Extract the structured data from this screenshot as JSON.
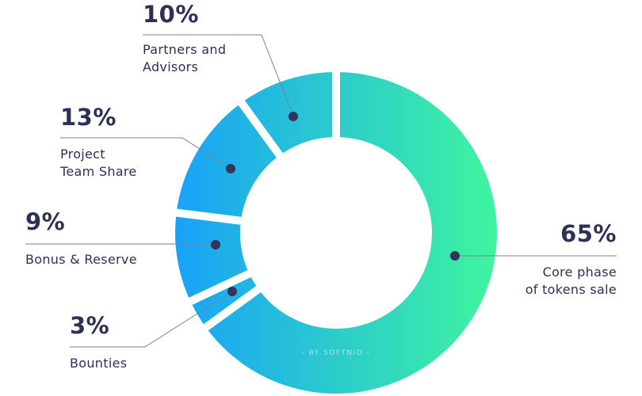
{
  "chart_data": {
    "type": "pie",
    "donut": true,
    "slices": [
      {
        "label": "Core phase\nof tokens sale",
        "value": 65,
        "value_label": "65%"
      },
      {
        "label": "Bounties",
        "value": 3,
        "value_label": "3%"
      },
      {
        "label": "Bonus & Reserve",
        "value": 9,
        "value_label": "9%"
      },
      {
        "label": "Project\nTeam Share",
        "value": 13,
        "value_label": "13%"
      },
      {
        "label": "Partners and\nAdvisors",
        "value": 10,
        "value_label": "10%"
      }
    ],
    "gradient": {
      "from": "#18a2f8",
      "to": "#3ff59e"
    },
    "dot_color": "#34345a",
    "watermark": "- BY SOFTNIO -"
  }
}
